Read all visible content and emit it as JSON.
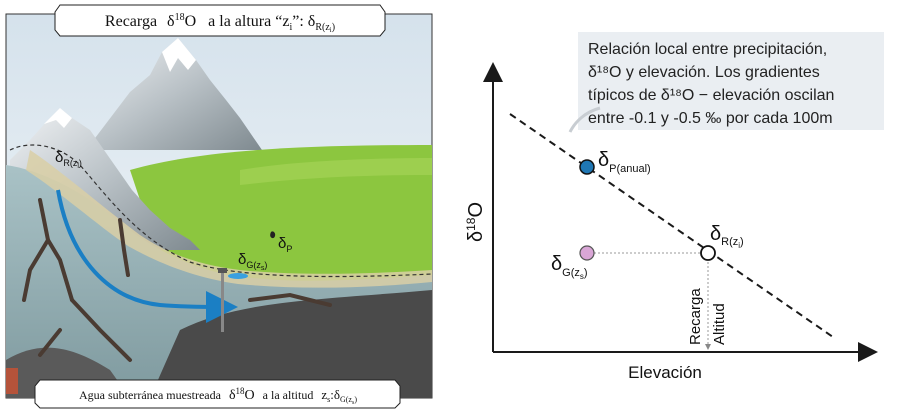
{
  "left_panel": {
    "top_banner": {
      "prefix": "Recarga",
      "delta": "δ",
      "iso_sup": "18",
      "iso_letter": "O",
      "middle": "a la altura “z",
      "middle_sub": "i",
      "middle_end": "”: δ",
      "end_sub": "R(z",
      "end_sub_i": "i",
      "end_sub_close": ")"
    },
    "bottom_banner": {
      "text": "Agua subterránea muestreada",
      "delta": "δ",
      "iso_sup": "18",
      "iso_letter": "O",
      "middle": "a la altitud",
      "z": "z",
      "z_sub": "s",
      "colon_delta": ":δ",
      "end_sub": "G(z",
      "end_sub_s": "s",
      "end_sub_close": ")"
    },
    "labels": {
      "delta_r": {
        "delta": "δ",
        "sub": "R(z",
        "sub_i": "i",
        "sub_close": ")"
      },
      "delta_p": {
        "delta": "δ",
        "sub": "P"
      },
      "delta_g": {
        "delta": "δ",
        "sub": "G(z",
        "sub_s": "s",
        "sub_close": ")"
      }
    },
    "colors": {
      "sky": "#e3ecf2",
      "grass": "#8cc63f",
      "water_arrow": "#1b7fc4",
      "rock": "#4a4a4a"
    }
  },
  "right_panel": {
    "note_lines": [
      "Relación local entre precipitación,",
      "δ¹⁸O y elevación. Los gradientes",
      "típicos de δ¹⁸O − elevación oscilan",
      "entre -0.1 y -0.5 ‰ por cada 100m"
    ],
    "y_axis": {
      "delta": "δ",
      "sup": "18",
      "letter": "O"
    },
    "x_axis_label": "Elevación",
    "point_p": {
      "delta": "δ",
      "sub": "P(anual)",
      "color": "#1f77b4"
    },
    "point_r": {
      "delta": "δ",
      "sub": "R(z",
      "sub_i": "i",
      "sub_close": ")"
    },
    "point_g": {
      "delta": "δ",
      "sub": "G(z",
      "sub_s": "s",
      "sub_close": ")",
      "color": "#d9a6d6"
    },
    "vertical_labels": {
      "recarga": "Recarga",
      "altitud": "Altitud"
    },
    "colors": {
      "note_bg": "#eaeef2",
      "axis": "#1a1a1a"
    }
  }
}
